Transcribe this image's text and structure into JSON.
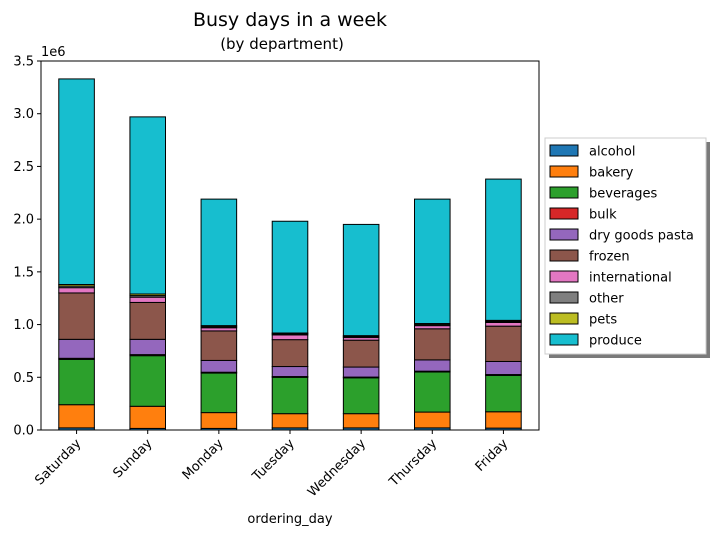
{
  "chart_data": {
    "type": "bar",
    "stacked": true,
    "title": "Busy days in a week",
    "subtitle": "(by department)",
    "xlabel": "ordering_day",
    "ylabel": "",
    "y_offset_text": "1e6",
    "ylim": [
      0,
      3500000
    ],
    "yticks": [
      0,
      500000,
      1000000,
      1500000,
      2000000,
      2500000,
      3000000,
      3500000
    ],
    "ytick_labels": [
      "0.0",
      "0.5",
      "1.0",
      "1.5",
      "2.0",
      "2.5",
      "3.0",
      "3.5"
    ],
    "grid": false,
    "legend_position": "right",
    "categories": [
      "Saturday",
      "Sunday",
      "Monday",
      "Tuesday",
      "Wednesday",
      "Thursday",
      "Friday"
    ],
    "series": [
      {
        "name": "alcohol",
        "color": "#1f77b4",
        "values": [
          20000,
          15000,
          15000,
          20000,
          20000,
          20000,
          18000
        ]
      },
      {
        "name": "bakery",
        "color": "#ff7f0e",
        "values": [
          220000,
          210000,
          150000,
          135000,
          135000,
          150000,
          155000
        ]
      },
      {
        "name": "beverages",
        "color": "#2ca02c",
        "values": [
          430000,
          480000,
          375000,
          345000,
          340000,
          380000,
          345000
        ]
      },
      {
        "name": "bulk",
        "color": "#d62728",
        "values": [
          10000,
          10000,
          8000,
          7000,
          7000,
          8000,
          8000
        ]
      },
      {
        "name": "dry goods pasta",
        "color": "#9467bd",
        "values": [
          180000,
          145000,
          112000,
          95000,
          95000,
          107000,
          124000
        ]
      },
      {
        "name": "frozen",
        "color": "#8c564b",
        "values": [
          440000,
          350000,
          280000,
          255000,
          255000,
          295000,
          335000
        ]
      },
      {
        "name": "international",
        "color": "#e377c2",
        "values": [
          50000,
          50000,
          30000,
          45000,
          25000,
          30000,
          35000
        ]
      },
      {
        "name": "other",
        "color": "#7f7f7f",
        "values": [
          15000,
          15000,
          10000,
          10000,
          10000,
          10000,
          10000
        ]
      },
      {
        "name": "pets",
        "color": "#bcbd22",
        "values": [
          15000,
          15000,
          10000,
          8000,
          8000,
          10000,
          10000
        ]
      },
      {
        "name": "produce",
        "color": "#17becf",
        "values": [
          1950000,
          1680000,
          1200000,
          1060000,
          1055000,
          1180000,
          1340000
        ]
      }
    ]
  }
}
